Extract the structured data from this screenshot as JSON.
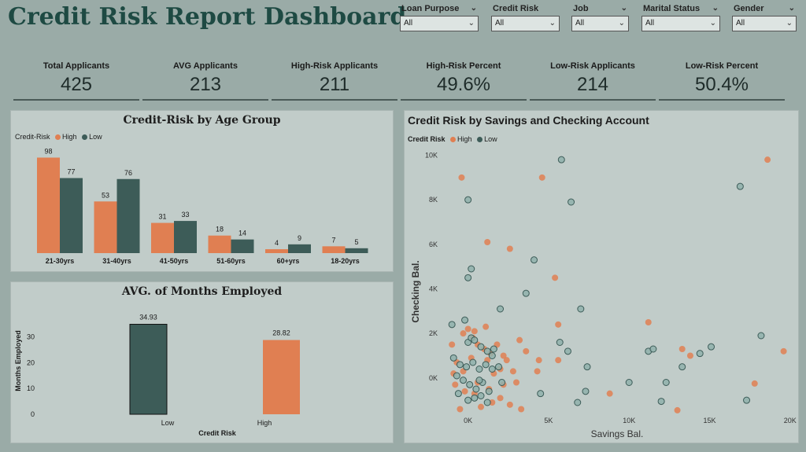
{
  "title": "Credit Risk Report Dashboard",
  "filters": [
    {
      "label": "Loan Purpose",
      "value": "All"
    },
    {
      "label": "Credit Risk",
      "value": "All"
    },
    {
      "label": "Job",
      "value": "All"
    },
    {
      "label": "Marital Status",
      "value": "All"
    },
    {
      "label": "Gender",
      "value": "All"
    }
  ],
  "kpis": [
    {
      "label": "Total Applicants",
      "value": "425"
    },
    {
      "label": "AVG Applicants",
      "value": "213"
    },
    {
      "label": "High-Risk Applicants",
      "value": "211"
    },
    {
      "label": "High-Risk Percent",
      "value": "49.6%"
    },
    {
      "label": "Low-Risk Applicants",
      "value": "214"
    },
    {
      "label": "Low-Risk Percent",
      "value": "50.4%"
    }
  ],
  "colors": {
    "high": "#e07f52",
    "low": "#3d5c58"
  },
  "age_panel": {
    "title": "Credit-Risk by Age Group",
    "legend_title": "Credit-Risk",
    "legend_high": "High",
    "legend_low": "Low"
  },
  "months_panel": {
    "title": "AVG. of Months Employed"
  },
  "scatter_panel": {
    "title": "Credit Risk by Savings and Checking Account",
    "legend_title": "Credit Risk",
    "legend_high": "High",
    "legend_low": "Low"
  },
  "chart_data": [
    {
      "type": "bar",
      "title": "Credit-Risk by Age Group",
      "categories": [
        "21-30yrs",
        "31-40yrs",
        "41-50yrs",
        "51-60yrs",
        "60+yrs",
        "18-20yrs"
      ],
      "series": [
        {
          "name": "High",
          "values": [
            98,
            53,
            31,
            18,
            4,
            7
          ]
        },
        {
          "name": "Low",
          "values": [
            77,
            76,
            33,
            14,
            9,
            5
          ]
        }
      ],
      "ylim": [
        0,
        100
      ]
    },
    {
      "type": "bar",
      "title": "AVG. of Months Employed",
      "categories": [
        "Low",
        "High"
      ],
      "values": [
        34.93,
        28.82
      ],
      "labels": [
        "34.93",
        "28.82"
      ],
      "xlabel": "Credit Risk",
      "ylabel": "Months Employed",
      "yticks": [
        0,
        10,
        20,
        30
      ],
      "ylim": [
        0,
        36
      ]
    },
    {
      "type": "scatter",
      "title": "Credit Risk by Savings and Checking Account",
      "xlabel": "Savings Bal.",
      "ylabel": "Checking Bal.",
      "xlim": [
        -1400,
        20500
      ],
      "ylim": [
        -1700,
        10300
      ],
      "xticks": [
        0,
        5000,
        10000,
        15000,
        20000
      ],
      "xtick_labels": [
        "0K",
        "5K",
        "10K",
        "15K",
        "20K"
      ],
      "yticks": [
        0,
        2000,
        4000,
        6000,
        8000,
        10000
      ],
      "ytick_labels": [
        "0K",
        "2K",
        "4K",
        "6K",
        "8K",
        "10K"
      ],
      "series": [
        {
          "name": "High",
          "points": [
            [
              -400,
              9000
            ],
            [
              4600,
              9000
            ],
            [
              18600,
              9800
            ],
            [
              1200,
              6100
            ],
            [
              2600,
              5800
            ],
            [
              5400,
              4500
            ],
            [
              5600,
              2400
            ],
            [
              11200,
              2500
            ],
            [
              -1000,
              1500
            ],
            [
              -300,
              2000
            ],
            [
              0,
              2200
            ],
            [
              300,
              1800
            ],
            [
              600,
              1500
            ],
            [
              1000,
              1300
            ],
            [
              1400,
              1100
            ],
            [
              1800,
              1500
            ],
            [
              2200,
              1000
            ],
            [
              3200,
              1700
            ],
            [
              3600,
              1200
            ],
            [
              -800,
              -300
            ],
            [
              -200,
              -600
            ],
            [
              400,
              -700
            ],
            [
              800,
              -1300
            ],
            [
              1500,
              -1100
            ],
            [
              2000,
              -900
            ],
            [
              2600,
              -1200
            ],
            [
              -500,
              -1400
            ],
            [
              3300,
              -1400
            ],
            [
              5600,
              800
            ],
            [
              8800,
              -700
            ],
            [
              13300,
              1300
            ],
            [
              13800,
              1000
            ],
            [
              17800,
              -250
            ],
            [
              19600,
              1200
            ],
            [
              400,
              2100
            ],
            [
              200,
              900
            ],
            [
              1200,
              800
            ],
            [
              1600,
              200
            ],
            [
              2000,
              400
            ],
            [
              2400,
              800
            ],
            [
              2800,
              300
            ],
            [
              3000,
              -200
            ],
            [
              -700,
              700
            ],
            [
              -300,
              300
            ],
            [
              600,
              -200
            ],
            [
              1300,
              -500
            ],
            [
              2200,
              -300
            ],
            [
              4300,
              300
            ],
            [
              4400,
              800
            ],
            [
              -900,
              200
            ],
            [
              13000,
              -1450
            ],
            [
              1100,
              2300
            ]
          ]
        },
        {
          "name": "Low",
          "points": [
            [
              5800,
              9800
            ],
            [
              0,
              8000
            ],
            [
              6400,
              7900
            ],
            [
              16900,
              8600
            ],
            [
              4100,
              5300
            ],
            [
              200,
              4900
            ],
            [
              0,
              4500
            ],
            [
              2000,
              3100
            ],
            [
              3600,
              3800
            ],
            [
              7000,
              3100
            ],
            [
              -1000,
              2400
            ],
            [
              -200,
              2600
            ],
            [
              0,
              1600
            ],
            [
              200,
              1800
            ],
            [
              400,
              1700
            ],
            [
              800,
              1400
            ],
            [
              1200,
              1200
            ],
            [
              1600,
              1300
            ],
            [
              -900,
              900
            ],
            [
              -500,
              600
            ],
            [
              -100,
              500
            ],
            [
              300,
              700
            ],
            [
              700,
              400
            ],
            [
              1100,
              600
            ],
            [
              1500,
              400
            ],
            [
              1900,
              500
            ],
            [
              -700,
              100
            ],
            [
              -300,
              -100
            ],
            [
              100,
              -300
            ],
            [
              500,
              -500
            ],
            [
              900,
              -200
            ],
            [
              1300,
              -600
            ],
            [
              -600,
              -700
            ],
            [
              0,
              -1000
            ],
            [
              400,
              -900
            ],
            [
              800,
              -800
            ],
            [
              1200,
              -1100
            ],
            [
              4500,
              -700
            ],
            [
              6200,
              1200
            ],
            [
              5700,
              1600
            ],
            [
              7400,
              500
            ],
            [
              7300,
              -600
            ],
            [
              6800,
              -1100
            ],
            [
              10000,
              -200
            ],
            [
              11200,
              1200
            ],
            [
              11500,
              1300
            ],
            [
              12300,
              -200
            ],
            [
              12000,
              -1050
            ],
            [
              13300,
              500
            ],
            [
              14400,
              1100
            ],
            [
              15100,
              1400
            ],
            [
              17300,
              -1000
            ],
            [
              18200,
              1900
            ],
            [
              2100,
              -200
            ],
            [
              1500,
              1000
            ],
            [
              700,
              -100
            ]
          ]
        }
      ]
    }
  ]
}
